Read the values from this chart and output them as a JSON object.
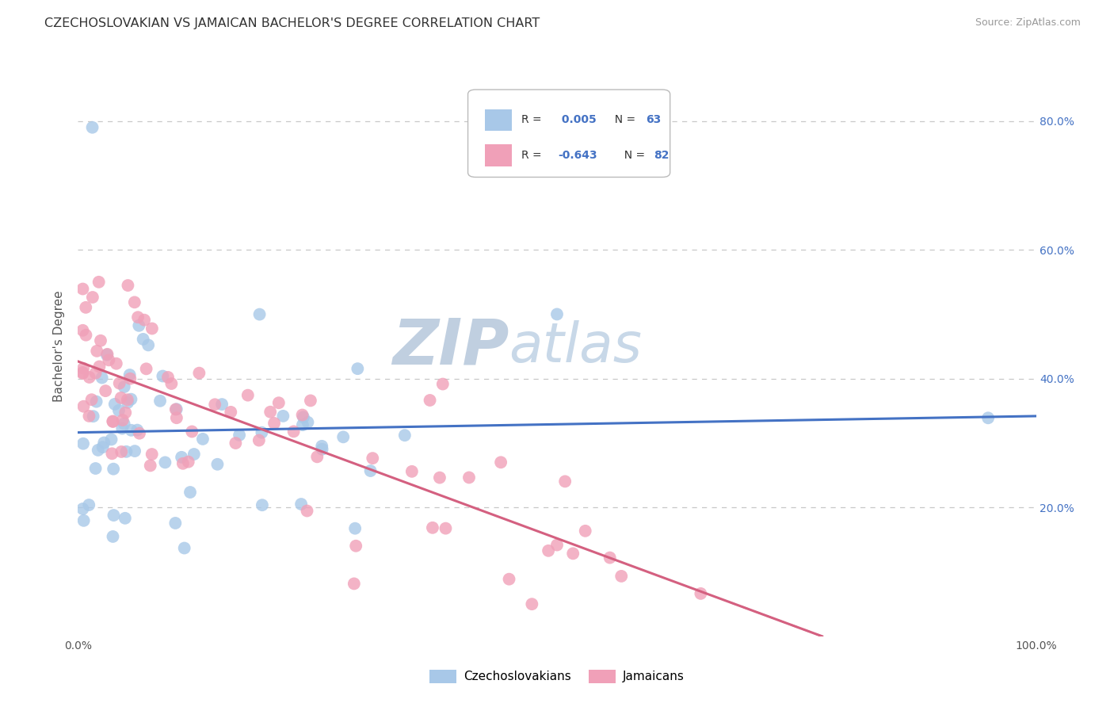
{
  "title": "CZECHOSLOVAKIAN VS BACHELOR'S DEGREE CORRELATION CHART",
  "title_full": "CZECHOSLOVAKIAN VS JAMAICAN BACHELOR'S DEGREE CORRELATION CHART",
  "source": "Source: ZipAtlas.com",
  "ylabel": "Bachelor's Degree",
  "legend_bottom_blue": "Czechoslovakians",
  "legend_bottom_pink": "Jamaicans",
  "blue_color": "#a8c8e8",
  "pink_color": "#f0a0b8",
  "blue_line_color": "#4472c4",
  "pink_line_color": "#d46080",
  "right_tick_color": "#4472c4",
  "xlim": [
    0,
    100
  ],
  "ylim": [
    0,
    90
  ],
  "background_color": "#ffffff",
  "grid_color": "#c8c8c8",
  "watermark_zip": "ZIP",
  "watermark_atlas": "atlas",
  "watermark_zip_color": "#c0cfe0",
  "watermark_atlas_color": "#c8d8e8"
}
